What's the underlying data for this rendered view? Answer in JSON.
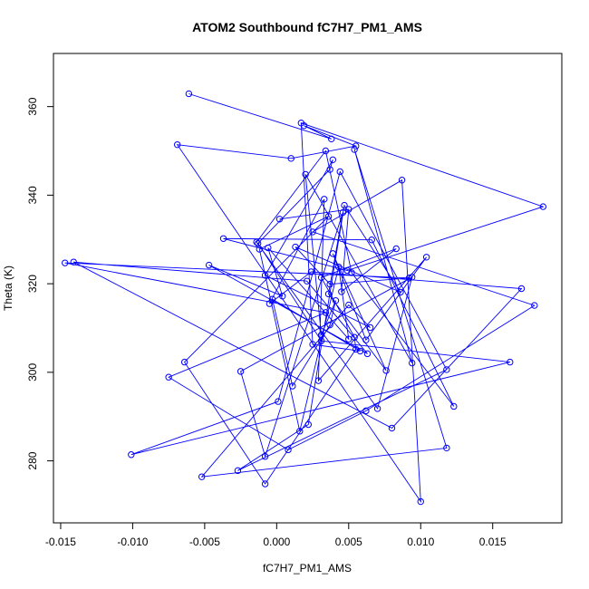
{
  "chart_data": {
    "type": "line",
    "title": "ATOM2 Southbound fC7H7_PM1_AMS",
    "xlabel": "fC7H7_PM1_AMS",
    "ylabel": "Theta (K)",
    "xlim": [
      -0.0155,
      0.0198
    ],
    "ylim": [
      266,
      372
    ],
    "xticks": [
      -0.015,
      -0.01,
      -0.005,
      0.0,
      0.005,
      0.01,
      0.015
    ],
    "xtick_labels": [
      "-0.015",
      "-0.010",
      "-0.005",
      "0.000",
      "0.005",
      "0.010",
      "0.015"
    ],
    "yticks": [
      280,
      300,
      320,
      340,
      360
    ],
    "ytick_labels": [
      "280",
      "300",
      "320",
      "340",
      "360"
    ],
    "grid": false,
    "marker": "open-circle",
    "color": "#0000ff",
    "x": [
      -0.0061,
      0.0038,
      0.0019,
      0.0055,
      0.001,
      -0.0069,
      0.01,
      0.0087,
      0.0025,
      0.0179,
      0.0062,
      0.0008,
      -0.0075,
      0.0034,
      -0.0147,
      0.0092,
      0.0037,
      0.0013,
      0.0086,
      0.0047,
      0.0022,
      -0.0027,
      0.0118,
      0.0044,
      0.0001,
      -0.0101,
      0.0162,
      0.0031,
      -0.0013,
      0.0037,
      0.0039,
      -0.0008,
      0.0065,
      0.005,
      -0.0052,
      0.0118,
      0.0054,
      0.0094,
      0.002,
      0.0031,
      0.0041,
      0.0037,
      0.0011,
      -0.0003,
      0.0058,
      0.0025,
      0.0017,
      0.0185,
      0.0049,
      -0.0037,
      0.0066,
      0.0123,
      0.0052,
      0.0034,
      -0.0014,
      0.007,
      0.0094,
      -0.0025,
      -0.0008,
      0.0046,
      0.0036,
      0.0076,
      0.0039,
      0.0062,
      0.0104,
      0.0029,
      0.0033,
      -0.0005,
      0.0024,
      0.017,
      0.008,
      -0.0141,
      0.0021,
      0.0063,
      -0.0047,
      0.0004,
      -0.0006,
      0.005,
      0.0043,
      0.0016,
      -0.0012,
      0.0036,
      -0.0064,
      -0.0008,
      0.0055,
      0.0054,
      0.0031,
      0.0083,
      0.0045,
      0.005,
      0.0002
    ],
    "y": [
      362.9,
      352.7,
      355.7,
      351.1,
      348.3,
      351.4,
      270.8,
      343.4,
      331.7,
      315.1,
      291.3,
      282.5,
      298.9,
      313.5,
      324.7,
      321.3,
      319.9,
      328.3,
      318.1,
      337.7,
      288.2,
      277.8,
      300.6,
      345.3,
      293.4,
      281.4,
      302.3,
      307.1,
      329.1,
      345.8,
      348.0,
      321.9,
      310.1,
      315.2,
      276.4,
      282.9,
      350.3,
      302.1,
      344.7,
      308.4,
      316.2,
      310.7,
      296.9,
      316.5,
      304.8,
      306.3,
      356.3,
      337.4,
      323.0,
      330.2,
      329.9,
      292.3,
      322.5,
      350.0,
      329.4,
      291.8,
      321.5,
      300.2,
      281.0,
      336.1,
      317.7,
      300.4,
      326.8,
      307.3,
      326.0,
      298.1,
      339.1,
      315.5,
      322.7,
      318.9,
      287.4,
      324.9,
      320.6,
      304.2,
      324.2,
      317.2,
      328.1,
      307.5,
      323.8,
      286.7,
      327.8,
      335.2,
      302.3,
      274.8,
      305.2,
      307.9,
      321.4,
      327.9,
      318.2,
      336.8,
      334.6
    ]
  }
}
